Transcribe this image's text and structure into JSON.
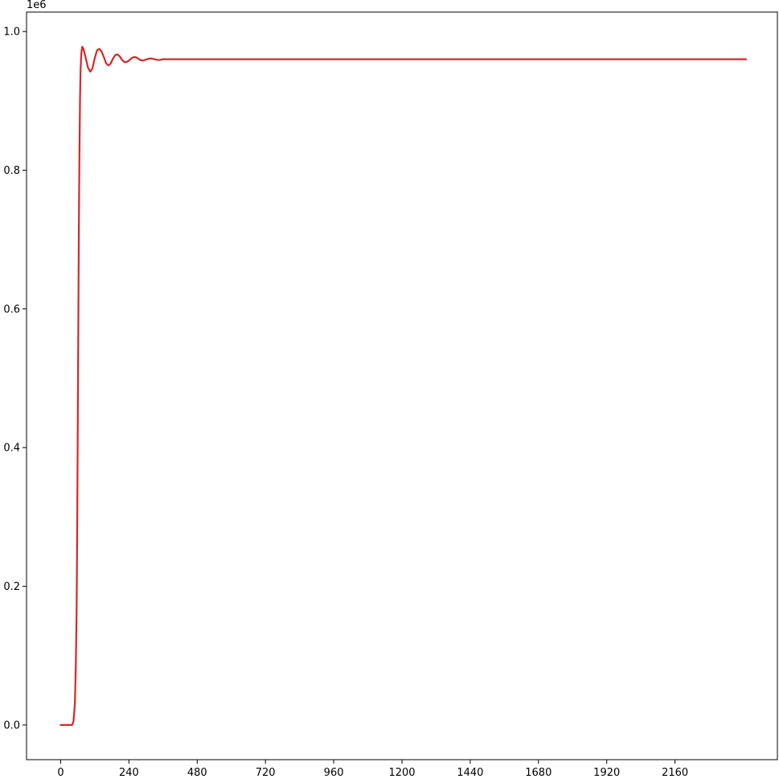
{
  "chart_data": {
    "type": "line",
    "title": "",
    "xlabel": "",
    "ylabel": "",
    "y_offset_label": "1e6",
    "xlim": [
      -120,
      2520
    ],
    "ylim": [
      -0.05,
      1.028
    ],
    "x_ticks": [
      {
        "value": 0,
        "label": "0"
      },
      {
        "value": 240,
        "label": "240"
      },
      {
        "value": 480,
        "label": "480"
      },
      {
        "value": 720,
        "label": "720"
      },
      {
        "value": 960,
        "label": "960"
      },
      {
        "value": 1200,
        "label": "1200"
      },
      {
        "value": 1440,
        "label": "1440"
      },
      {
        "value": 1680,
        "label": "1680"
      },
      {
        "value": 1920,
        "label": "1920"
      },
      {
        "value": 2160,
        "label": "2160"
      }
    ],
    "y_ticks": [
      {
        "value": 0.0,
        "label": "0.0"
      },
      {
        "value": 0.2,
        "label": "0.2"
      },
      {
        "value": 0.4,
        "label": "0.4"
      },
      {
        "value": 0.6,
        "label": "0.6"
      },
      {
        "value": 0.8,
        "label": "0.8"
      },
      {
        "value": 1.0,
        "label": "1.0"
      }
    ],
    "grid": false,
    "spines": [
      "left",
      "bottom",
      "top",
      "right"
    ],
    "series": [
      {
        "color": "#d62728",
        "x": [
          0,
          20,
          40,
          45,
          50,
          53,
          56,
          58,
          60,
          62,
          64,
          66,
          68,
          70,
          73,
          76,
          80,
          88,
          96,
          104,
          112,
          120,
          128,
          136,
          144,
          152,
          160,
          168,
          176,
          184,
          192,
          200,
          208,
          216,
          224,
          232,
          240,
          248,
          256,
          264,
          272,
          280,
          288,
          296,
          304,
          312,
          320,
          330,
          340,
          350,
          360,
          370,
          380,
          390,
          400,
          420,
          440,
          480,
          600,
          800,
          1000,
          1200,
          1400,
          1600,
          1800,
          2000,
          2200,
          2400,
          2410
        ],
        "y": [
          0.0,
          0.0,
          0.0,
          0.005,
          0.03,
          0.08,
          0.16,
          0.27,
          0.42,
          0.57,
          0.72,
          0.82,
          0.9,
          0.945,
          0.97,
          0.978,
          0.975,
          0.962,
          0.948,
          0.942,
          0.947,
          0.962,
          0.973,
          0.975,
          0.971,
          0.963,
          0.954,
          0.951,
          0.954,
          0.961,
          0.966,
          0.967,
          0.964,
          0.959,
          0.956,
          0.956,
          0.958,
          0.961,
          0.963,
          0.963,
          0.961,
          0.959,
          0.958,
          0.959,
          0.96,
          0.961,
          0.961,
          0.96,
          0.959,
          0.959,
          0.96,
          0.96,
          0.96,
          0.96,
          0.96,
          0.96,
          0.96,
          0.96,
          0.96,
          0.96,
          0.96,
          0.96,
          0.96,
          0.96,
          0.96,
          0.96,
          0.96,
          0.96,
          0.96
        ]
      }
    ]
  }
}
